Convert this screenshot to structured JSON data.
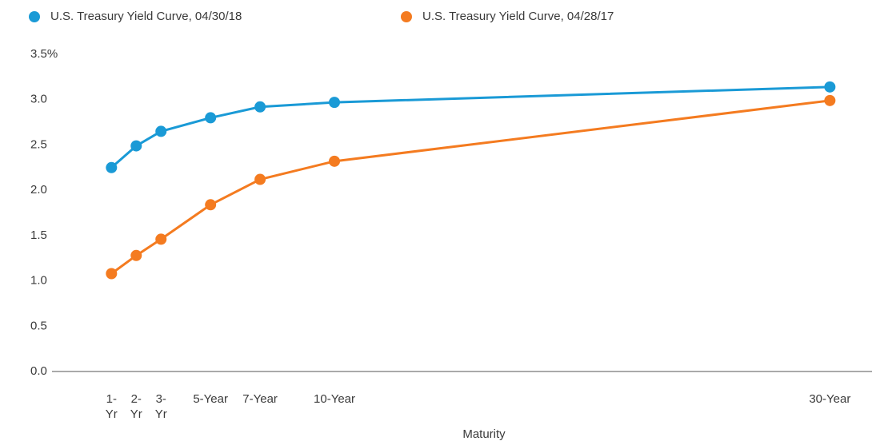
{
  "chart_data": {
    "type": "line",
    "x": [
      1,
      2,
      3,
      5,
      7,
      10,
      30
    ],
    "series": [
      {
        "name": "U.S. Treasury Yield Curve, 04/30/18",
        "color": "#1a9ad6",
        "values": [
          2.25,
          2.49,
          2.65,
          2.8,
          2.92,
          2.97,
          3.14
        ]
      },
      {
        "name": "U.S. Treasury Yield Curve, 04/28/17",
        "color": "#f47b20",
        "values": [
          1.08,
          1.28,
          1.46,
          1.84,
          2.12,
          2.32,
          2.99
        ]
      }
    ],
    "x_label": "Maturity",
    "xlim": [
      -1.4,
      31.7
    ],
    "xticks": [
      {
        "value": 1,
        "label": "1-Yr"
      },
      {
        "value": 2,
        "label": "2-Yr"
      },
      {
        "value": 3,
        "label": "3-Yr"
      },
      {
        "value": 5,
        "label": "5-Year"
      },
      {
        "value": 7,
        "label": "7-Year"
      },
      {
        "value": 10,
        "label": "10-Year"
      },
      {
        "value": 30,
        "label": "30-Year"
      }
    ],
    "ylim": [
      0,
      3.5
    ],
    "yticks": [
      {
        "value": 0,
        "label": "0.0"
      },
      0.5,
      {
        "value": 1,
        "label": "1.0"
      },
      1.5,
      {
        "value": 2,
        "label": "2.0"
      },
      2.5,
      {
        "value": 3,
        "label": "3.0"
      },
      {
        "value": 3.5,
        "label": "3.5%"
      }
    ],
    "grid": false,
    "legend": "top"
  }
}
